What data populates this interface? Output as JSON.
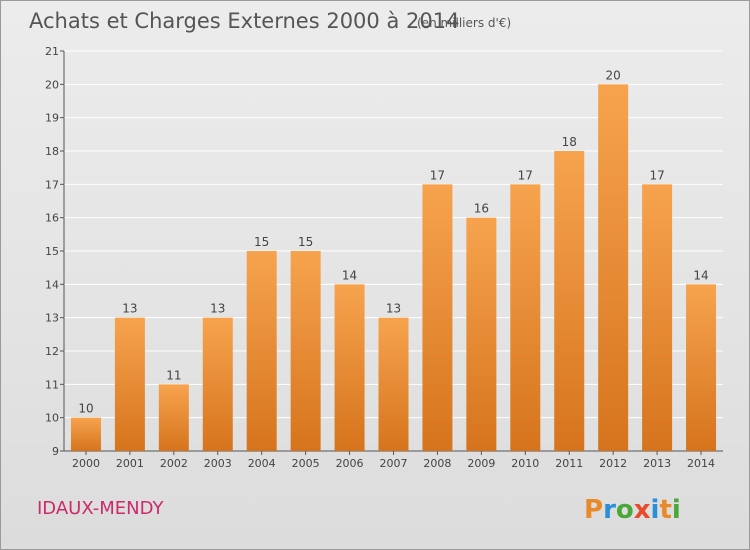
{
  "chart_data": {
    "type": "bar",
    "title": "Achats et Charges Externes 2000 à 2014",
    "unit": "(en milliers d'€)",
    "categories": [
      "2000",
      "2001",
      "2002",
      "2003",
      "2004",
      "2005",
      "2006",
      "2007",
      "2008",
      "2009",
      "2010",
      "2011",
      "2012",
      "2013",
      "2014"
    ],
    "values": [
      10,
      13,
      11,
      13,
      15,
      15,
      14,
      13,
      17,
      16,
      17,
      18,
      20,
      17,
      14
    ],
    "ylim": [
      9,
      21
    ],
    "yticks": [
      9,
      10,
      11,
      12,
      13,
      14,
      15,
      16,
      17,
      18,
      19,
      20,
      21
    ],
    "grid": true,
    "bar_color_top": "#f7a34e",
    "bar_color_bottom": "#d6741d"
  },
  "footer": {
    "commune": "IDAUX-MENDY",
    "logo": "Proxiti"
  },
  "colors": {
    "commune": "#cc2a6a",
    "logo_letters": [
      "#e8892a",
      "#2a8fd6",
      "#4aa83a",
      "#e84a2a",
      "#2a8fd6",
      "#e8892a",
      "#4aa83a"
    ]
  }
}
